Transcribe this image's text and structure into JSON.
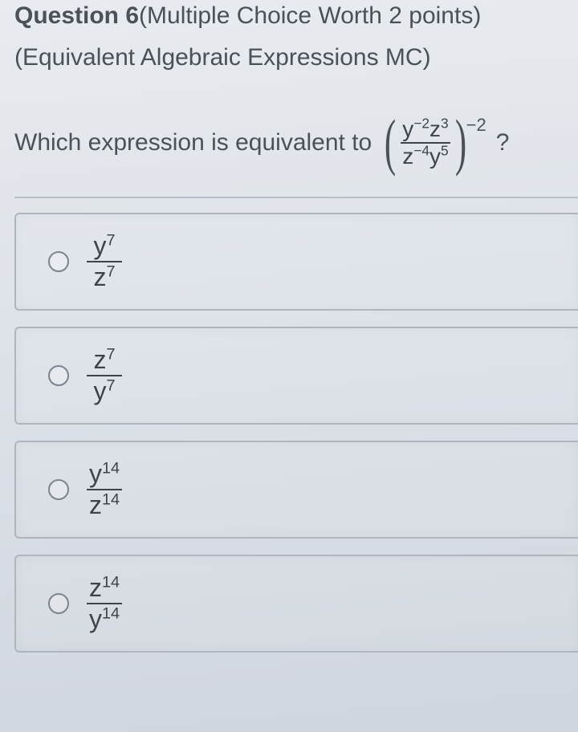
{
  "header": {
    "label": "Question 6",
    "worth": "(Multiple Choice Worth 2 points)"
  },
  "subtitle": "(Equivalent Algebraic Expressions MC)",
  "prompt": {
    "lead": "Which expression is equivalent to",
    "frac_num_html": "y<sup>−2</sup>z<sup>3</sup>",
    "frac_den_html": "z<sup>−4</sup>y<sup>5</sup>",
    "outer_exponent": "−2",
    "trail": "?"
  },
  "options": [
    {
      "num_html": "y<sup>7</sup>",
      "den_html": "z<sup>7</sup>"
    },
    {
      "num_html": "z<sup>7</sup>",
      "den_html": "y<sup>7</sup>"
    },
    {
      "num_html": "y<sup>14</sup>",
      "den_html": "z<sup>14</sup>"
    },
    {
      "num_html": "z<sup>14</sup>",
      "den_html": "y<sup>14</sup>"
    }
  ],
  "colors": {
    "text": "#4c5058",
    "border": "#aeb5bf",
    "radio_border": "#7d848e",
    "bg_top": "#e8ebef",
    "bg_bottom": "#d0d6de"
  }
}
